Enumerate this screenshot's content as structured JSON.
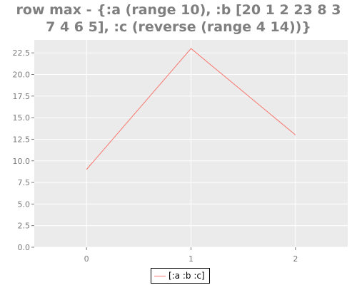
{
  "chart_data": {
    "type": "line",
    "title_lines": [
      "row max - {:a (range 10), :b [20 1 2 23 8 3",
      "7 4 6 5], :c (reverse (range 4 14))}"
    ],
    "x": [
      0,
      1,
      2
    ],
    "x_ticks": [
      "0",
      "1",
      "2"
    ],
    "xlim": [
      -0.5,
      2.5
    ],
    "y_ticks": [
      "0.0",
      "2.5",
      "5.0",
      "7.5",
      "10.0",
      "12.5",
      "15.0",
      "17.5",
      "20.0",
      "22.5"
    ],
    "ylim": [
      0,
      24
    ],
    "series": [
      {
        "name": "[:a :b :c]",
        "values": [
          9,
          23,
          13
        ],
        "color": "#f8766d"
      }
    ],
    "grid": true,
    "legend_position": "bottom-center",
    "background": "#ebebeb",
    "gridline_color": "#ffffff"
  }
}
